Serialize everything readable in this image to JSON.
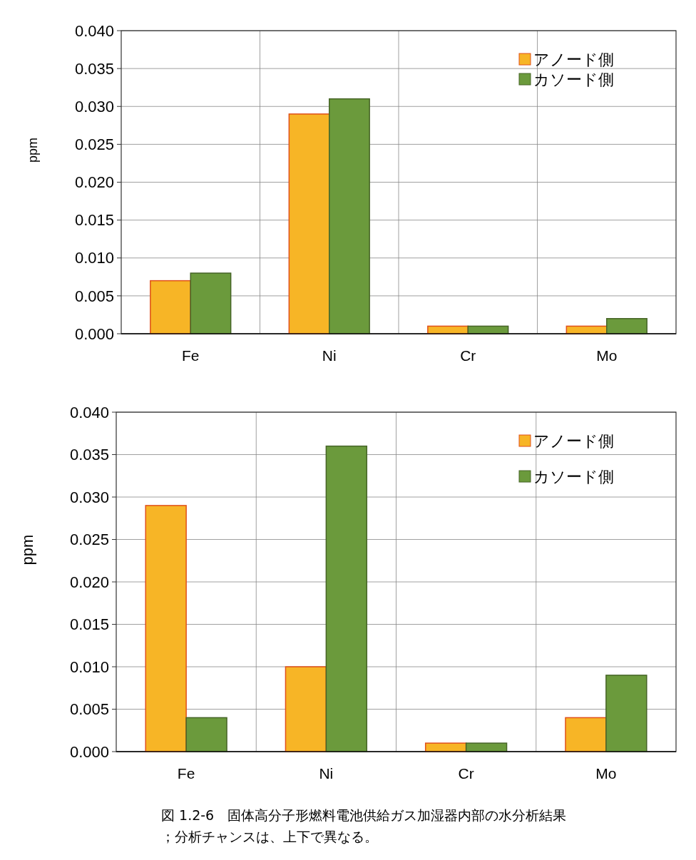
{
  "chart_data": [
    {
      "type": "bar",
      "ylabel": "ppm",
      "categories": [
        "Fe",
        "Ni",
        "Cr",
        "Mo"
      ],
      "series": [
        {
          "name": "アノード側",
          "color": "#f7b526",
          "values": [
            0.007,
            0.029,
            0.001,
            0.001
          ]
        },
        {
          "name": "カソード側",
          "color": "#6b9a3c",
          "values": [
            0.008,
            0.031,
            0.001,
            0.002
          ]
        }
      ],
      "ylim": [
        0,
        0.04
      ],
      "yticks": [
        {
          "value": 0,
          "label": "0.000"
        },
        {
          "value": 0.005,
          "label": "0.005"
        },
        {
          "value": 0.01,
          "label": "0.010"
        },
        {
          "value": 0.015,
          "label": "0.015"
        },
        {
          "value": 0.02,
          "label": "0.020"
        },
        {
          "value": 0.025,
          "label": "0.025"
        },
        {
          "value": 0.03,
          "label": "0.030"
        },
        {
          "value": 0.035,
          "label": "0.035"
        },
        {
          "value": 0.04,
          "label": "0.040"
        }
      ],
      "grid": true,
      "legend": "top right"
    },
    {
      "type": "bar",
      "ylabel": "ppm",
      "categories": [
        "Fe",
        "Ni",
        "Cr",
        "Mo"
      ],
      "series": [
        {
          "name": "アノード側",
          "color": "#f7b526",
          "values": [
            0.029,
            0.01,
            0.001,
            0.004
          ]
        },
        {
          "name": "カソード側",
          "color": "#6b9a3c",
          "values": [
            0.004,
            0.036,
            0.001,
            0.009
          ]
        }
      ],
      "ylim": [
        0,
        0.04
      ],
      "yticks": [
        {
          "value": 0,
          "label": "0.000"
        },
        {
          "value": 0.005,
          "label": "0.005"
        },
        {
          "value": 0.01,
          "label": "0.010"
        },
        {
          "value": 0.015,
          "label": "0.015"
        },
        {
          "value": 0.02,
          "label": "0.020"
        },
        {
          "value": 0.025,
          "label": "0.025"
        },
        {
          "value": 0.03,
          "label": "0.030"
        },
        {
          "value": 0.035,
          "label": "0.035"
        },
        {
          "value": 0.04,
          "label": "0.040"
        }
      ],
      "grid": true,
      "legend": "top right",
      "annotations": [
        "図 1.2-6　固体高分子形燃料電池供給ガス加湿器内部の水分析結果",
        "；分析チャンスは、上下で異なる。"
      ]
    }
  ]
}
